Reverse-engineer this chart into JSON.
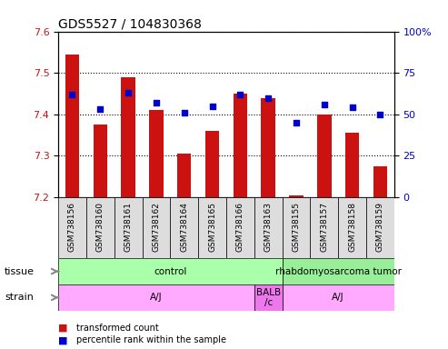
{
  "title": "GDS5527 / 104830368",
  "samples": [
    "GSM738156",
    "GSM738160",
    "GSM738161",
    "GSM738162",
    "GSM738164",
    "GSM738165",
    "GSM738166",
    "GSM738163",
    "GSM738155",
    "GSM738157",
    "GSM738158",
    "GSM738159"
  ],
  "bar_values": [
    7.545,
    7.375,
    7.49,
    7.41,
    7.305,
    7.36,
    7.45,
    7.44,
    7.205,
    7.4,
    7.355,
    7.275
  ],
  "dot_values": [
    62,
    53,
    63,
    57,
    51,
    55,
    62,
    60,
    45,
    56,
    54,
    50
  ],
  "bar_bottom": 7.2,
  "ylim_left": [
    7.2,
    7.6
  ],
  "ylim_right": [
    0,
    100
  ],
  "yticks_left": [
    7.2,
    7.3,
    7.4,
    7.5,
    7.6
  ],
  "yticks_right": [
    0,
    25,
    50,
    75,
    100
  ],
  "bar_color": "#cc1111",
  "dot_color": "#0000cc",
  "tissue_groups": [
    {
      "label": "control",
      "start": 0,
      "end": 8,
      "color": "#aaffaa"
    },
    {
      "label": "rhabdomyosarcoma tumor",
      "start": 8,
      "end": 12,
      "color": "#99ee99"
    }
  ],
  "strain_groups": [
    {
      "label": "A/J",
      "start": 0,
      "end": 7,
      "color": "#ffaaff"
    },
    {
      "label": "BALB\n/c",
      "start": 7,
      "end": 8,
      "color": "#ee77ee"
    },
    {
      "label": "A/J",
      "start": 8,
      "end": 12,
      "color": "#ffaaff"
    }
  ],
  "tissue_label": "tissue",
  "strain_label": "strain",
  "legend_bar_label": "transformed count",
  "legend_dot_label": "percentile rank within the sample",
  "title_fontsize": 10,
  "axis_label_color_left": "#cc1111",
  "axis_label_color_right": "#0000cc",
  "xticklabels_bg": "#dddddd"
}
